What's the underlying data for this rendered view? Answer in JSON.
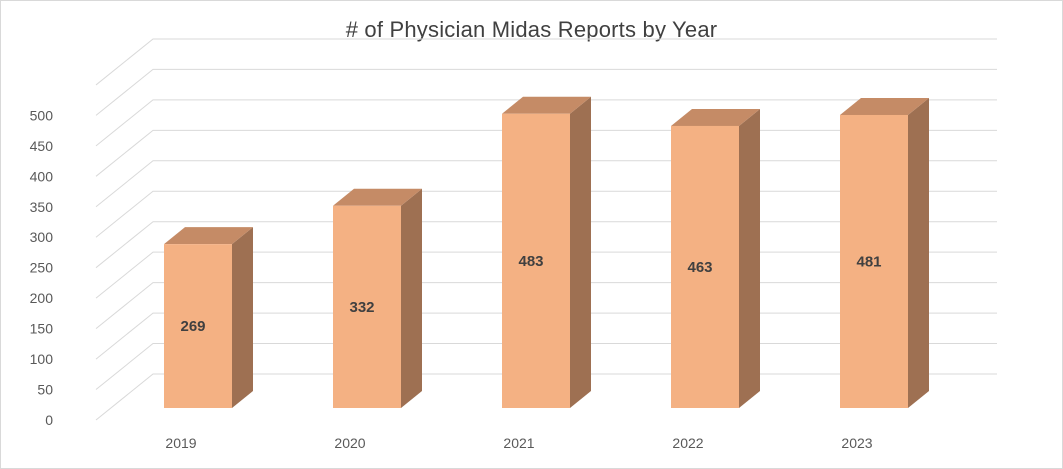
{
  "chart_data": {
    "type": "bar",
    "title": "# of Physician Midas Reports by Year",
    "categories": [
      "2019",
      "2020",
      "2021",
      "2022",
      "2023"
    ],
    "values": [
      269,
      332,
      483,
      463,
      481
    ],
    "data_labels": [
      "269",
      "332",
      "483",
      "463",
      "481"
    ],
    "xlabel": "",
    "ylabel": "",
    "ylim": [
      0,
      550
    ],
    "y_ticks": [
      "0",
      "50",
      "100",
      "150",
      "200",
      "250",
      "300",
      "350",
      "400",
      "450",
      "500"
    ],
    "grid": true,
    "legend": "none",
    "style": "3d-column",
    "colors": {
      "bar_front": "#F4B183",
      "bar_side": "#9E7052",
      "bar_top": "#C58B66",
      "gridline": "#d9d9d9",
      "text": "#595959"
    }
  }
}
